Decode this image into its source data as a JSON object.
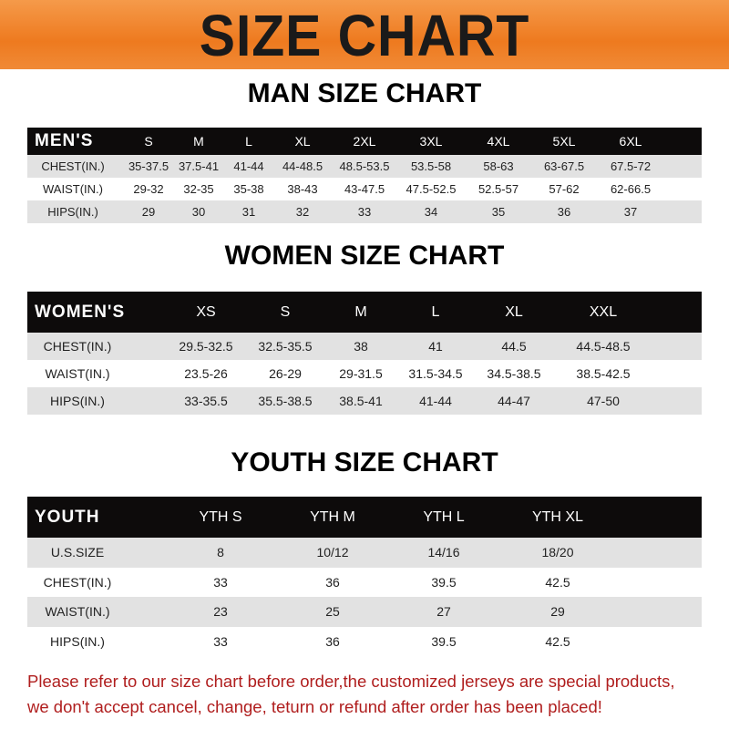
{
  "banner": {
    "title": "SIZE CHART"
  },
  "men": {
    "title": "MAN SIZE CHART",
    "headers": [
      "MEN'S",
      "S",
      "M",
      "L",
      "XL",
      "2XL",
      "3XL",
      "4XL",
      "5XL",
      "6XL"
    ],
    "rows": [
      [
        "CHEST(IN.)",
        "35-37.5",
        "37.5-41",
        "41-44",
        "44-48.5",
        "48.5-53.5",
        "53.5-58",
        "58-63",
        "63-67.5",
        "67.5-72"
      ],
      [
        "WAIST(IN.)",
        "29-32",
        "32-35",
        "35-38",
        "38-43",
        "43-47.5",
        "47.5-52.5",
        "52.5-57",
        "57-62",
        "62-66.5"
      ],
      [
        "HIPS(IN.)",
        "29",
        "30",
        "31",
        "32",
        "33",
        "34",
        "35",
        "36",
        "37"
      ]
    ]
  },
  "women": {
    "title": "WOMEN SIZE CHART",
    "headers": [
      "WOMEN'S",
      "XS",
      "S",
      "M",
      "L",
      "XL",
      "XXL"
    ],
    "rows": [
      [
        "CHEST(IN.)",
        "29.5-32.5",
        "32.5-35.5",
        "38",
        "41",
        "44.5",
        "44.5-48.5"
      ],
      [
        "WAIST(IN.)",
        "23.5-26",
        "26-29",
        "29-31.5",
        "31.5-34.5",
        "34.5-38.5",
        "38.5-42.5"
      ],
      [
        "HIPS(IN.)",
        "33-35.5",
        "35.5-38.5",
        "38.5-41",
        "41-44",
        "44-47",
        "47-50"
      ]
    ]
  },
  "youth": {
    "title": "YOUTH SIZE CHART",
    "headers": [
      "YOUTH",
      "YTH S",
      "YTH M",
      "YTH L",
      "YTH XL"
    ],
    "rows": [
      [
        "U.S.SIZE",
        "8",
        "10/12",
        "14/16",
        "18/20"
      ],
      [
        "CHEST(IN.)",
        "33",
        "36",
        "39.5",
        "42.5"
      ],
      [
        "WAIST(IN.)",
        "23",
        "25",
        "27",
        "29"
      ],
      [
        "HIPS(IN.)",
        "33",
        "36",
        "39.5",
        "42.5"
      ]
    ]
  },
  "footer": {
    "line1": "Please refer to our size chart before order,the customized jerseys are special products,",
    "line2": "we don't accept cancel, change, teturn or refund after order has been placed!"
  },
  "colors": {
    "banner": "#ee7a1f",
    "header_row": "#0d0b0b",
    "notice_text": "#b01e1e"
  }
}
